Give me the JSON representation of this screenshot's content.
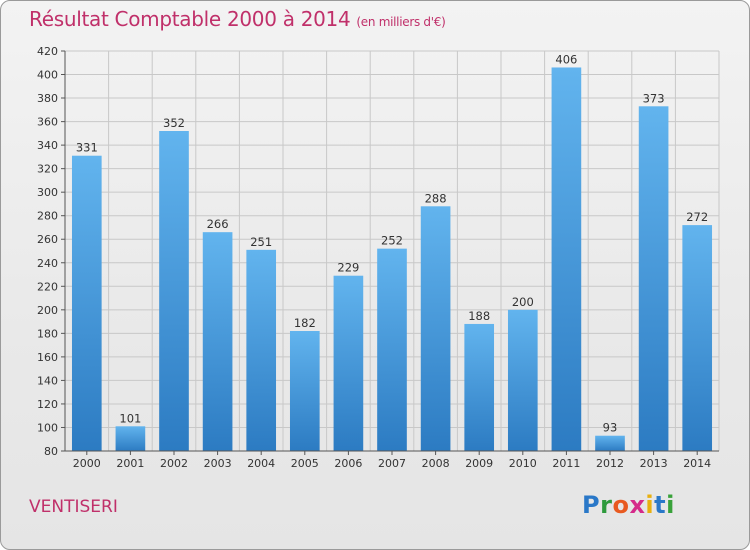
{
  "header": {
    "title": "Résultat Comptable 2000 à 2014",
    "unit": "(en milliers d'€)"
  },
  "footer": {
    "commune": "VENTISERI",
    "logo_letters": [
      "P",
      "r",
      "o",
      "x",
      "i",
      "t",
      "i"
    ],
    "logo_colors": [
      "#2a78c8",
      "#2e9a3c",
      "#e85a20",
      "#d52a8a",
      "#e8b010",
      "#2a78c8",
      "#39a23a"
    ]
  },
  "colors": {
    "title": "#c0306a",
    "bar_top": "#62b4ee",
    "bar_bottom": "#2c7bc2",
    "grid": "#c8c8c8"
  },
  "chart_data": {
    "type": "bar",
    "categories": [
      "2000",
      "2001",
      "2002",
      "2003",
      "2004",
      "2005",
      "2006",
      "2007",
      "2008",
      "2009",
      "2010",
      "2011",
      "2012",
      "2013",
      "2014"
    ],
    "values": [
      331,
      101,
      352,
      266,
      251,
      182,
      229,
      252,
      288,
      188,
      200,
      406,
      93,
      373,
      272
    ],
    "title": "Résultat Comptable 2000 à 2014",
    "xlabel": "",
    "ylabel": "",
    "ylim": [
      80,
      420
    ],
    "yticks": [
      80,
      100,
      120,
      140,
      160,
      180,
      200,
      220,
      240,
      260,
      280,
      300,
      320,
      340,
      360,
      380,
      400,
      420
    ],
    "grid": true,
    "data_labels": true
  }
}
